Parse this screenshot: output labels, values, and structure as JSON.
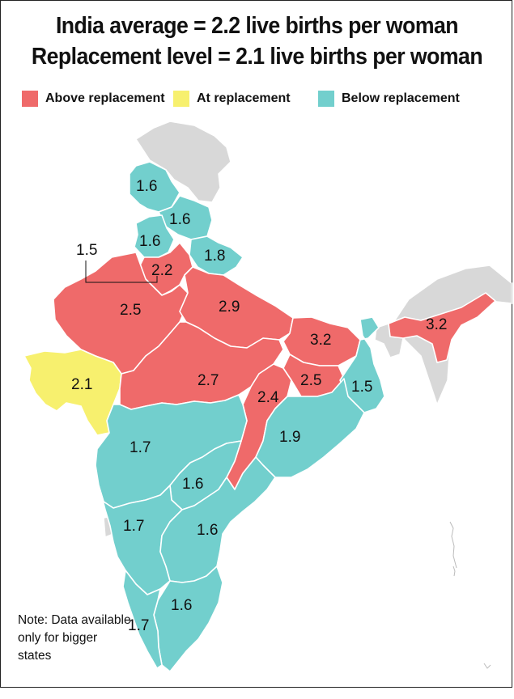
{
  "title": {
    "line1": "India average = 2.2 live births per woman",
    "line2": "Replacement level = 2.1 live births per woman"
  },
  "legend": [
    {
      "label": "Above replacement",
      "color": "#ef6a6a"
    },
    {
      "label": "At replacement",
      "color": "#f7f06e"
    },
    {
      "label": "Below replacement",
      "color": "#72cfcd"
    }
  ],
  "colors": {
    "no_data": "#d8d8d8",
    "border": "#ffffff"
  },
  "regions": [
    {
      "value": "1.6",
      "category": "below"
    },
    {
      "value": "1.6",
      "category": "below"
    },
    {
      "value": "1.6",
      "category": "below"
    },
    {
      "value": "1.8",
      "category": "below"
    },
    {
      "value": "1.5",
      "category": "below"
    },
    {
      "value": "2.2",
      "category": "above"
    },
    {
      "value": "2.5",
      "category": "above"
    },
    {
      "value": "2.9",
      "category": "above"
    },
    {
      "value": "3.2",
      "category": "above"
    },
    {
      "value": "3.2",
      "category": "above"
    },
    {
      "value": "2.1",
      "category": "at"
    },
    {
      "value": "2.7",
      "category": "above"
    },
    {
      "value": "2.4",
      "category": "above"
    },
    {
      "value": "2.5",
      "category": "above"
    },
    {
      "value": "1.5",
      "category": "below"
    },
    {
      "value": "1.9",
      "category": "below"
    },
    {
      "value": "1.7",
      "category": "below"
    },
    {
      "value": "1.6",
      "category": "below"
    },
    {
      "value": "1.7",
      "category": "below"
    },
    {
      "value": "1.6",
      "category": "below"
    },
    {
      "value": "1.6",
      "category": "below"
    },
    {
      "value": "1.7",
      "category": "below"
    }
  ],
  "note": "Note: Data available only for bigger states"
}
